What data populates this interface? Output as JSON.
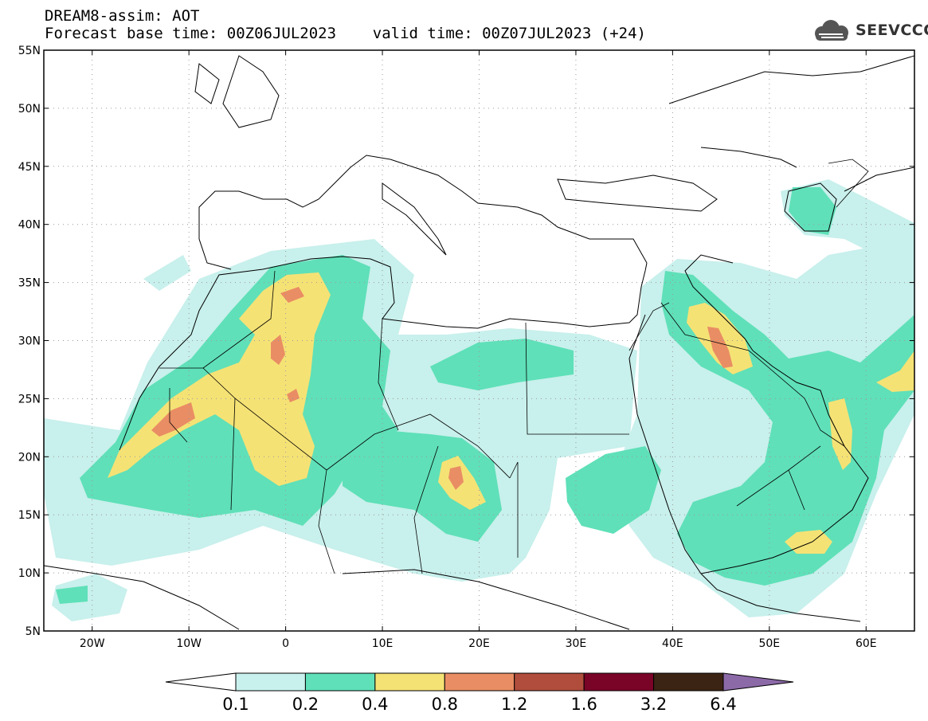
{
  "header": {
    "title_line1": "DREAM8-assim: AOT",
    "title_line2": "Forecast base time: 00Z06JUL2023    valid time: 00Z07JUL2023 (+24)"
  },
  "logo": {
    "text": "SEEVCCC",
    "icon": "cloud-icon"
  },
  "map": {
    "lon_ticks": [
      {
        "v": -20,
        "label": "20W"
      },
      {
        "v": -10,
        "label": "10W"
      },
      {
        "v": 0,
        "label": "0"
      },
      {
        "v": 10,
        "label": "10E"
      },
      {
        "v": 20,
        "label": "20E"
      },
      {
        "v": 30,
        "label": "30E"
      },
      {
        "v": 40,
        "label": "40E"
      },
      {
        "v": 50,
        "label": "50E"
      },
      {
        "v": 60,
        "label": "60E"
      }
    ],
    "lat_ticks": [
      {
        "v": 55,
        "label": "55N"
      },
      {
        "v": 50,
        "label": "50N"
      },
      {
        "v": 45,
        "label": "45N"
      },
      {
        "v": 40,
        "label": "40N"
      },
      {
        "v": 35,
        "label": "35N"
      },
      {
        "v": 30,
        "label": "30N"
      },
      {
        "v": 25,
        "label": "25N"
      },
      {
        "v": 20,
        "label": "20N"
      },
      {
        "v": 15,
        "label": "15N"
      },
      {
        "v": 10,
        "label": "10N"
      },
      {
        "v": 5,
        "label": "5N"
      }
    ],
    "extent": {
      "lon": [
        -25,
        65
      ],
      "lat": [
        5,
        55
      ]
    }
  },
  "colorbar": {
    "bins": [
      {
        "color": "#c8f0ec"
      },
      {
        "color": "#5fe0b8"
      },
      {
        "color": "#f5e275"
      },
      {
        "color": "#e98d64"
      },
      {
        "color": "#b04d3c"
      },
      {
        "color": "#7a0328"
      },
      {
        "color": "#3c2414"
      },
      {
        "color": "#8c6aa8"
      }
    ],
    "labels": [
      "0.1",
      "0.2",
      "0.4",
      "0.8",
      "1.2",
      "1.6",
      "3.2",
      "6.4"
    ]
  }
}
